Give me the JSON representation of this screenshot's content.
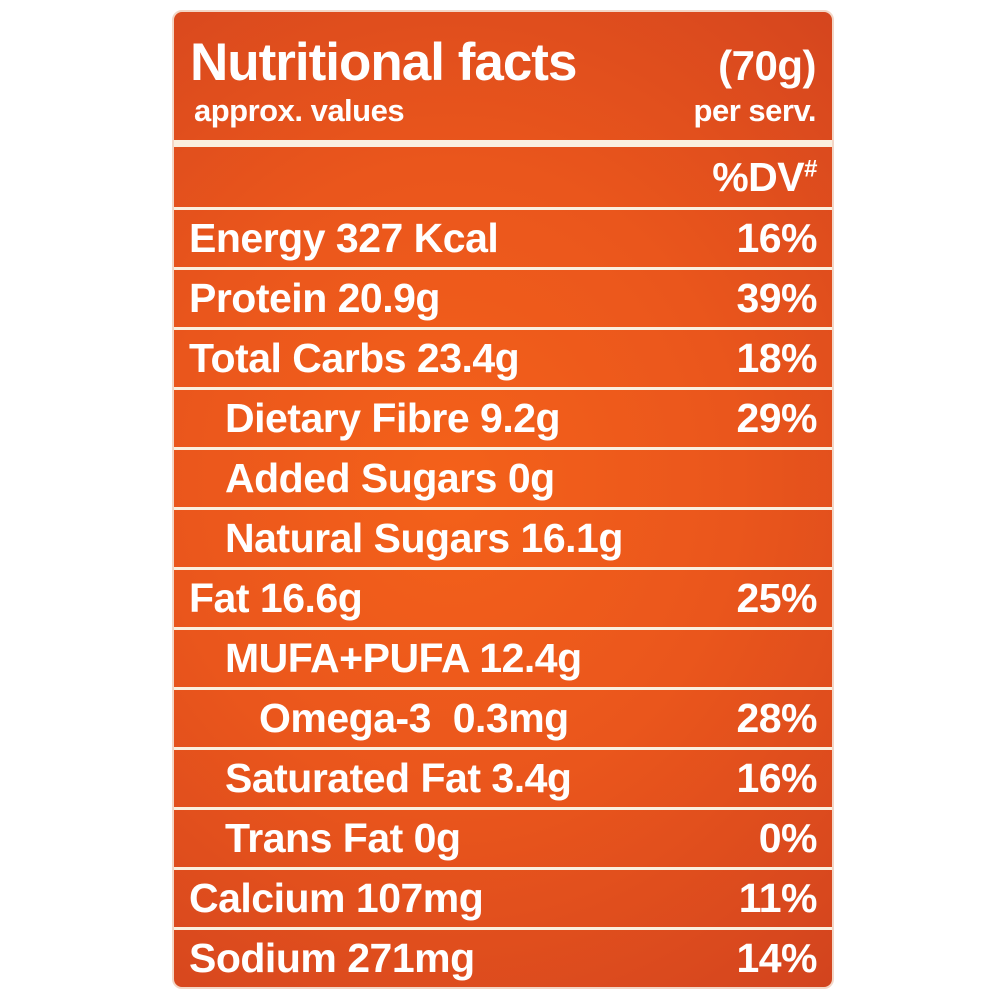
{
  "label": {
    "title": "Nutritional facts",
    "serving_size": "(70g)",
    "approx_note": "approx. values",
    "per_serving_note": "per serv.",
    "dv_header": "%DV",
    "dv_header_mark": "#",
    "rows": [
      {
        "name": "Energy 327 Kcal",
        "dv": "16%",
        "indent": 0
      },
      {
        "name": "Protein 20.9g",
        "dv": "39%",
        "indent": 0
      },
      {
        "name": "Total Carbs 23.4g",
        "dv": "18%",
        "indent": 0
      },
      {
        "name": "Dietary Fibre 9.2g",
        "dv": "29%",
        "indent": 1
      },
      {
        "name": "Added Sugars 0g",
        "dv": "",
        "indent": 1
      },
      {
        "name": "Natural Sugars 16.1g",
        "dv": "",
        "indent": 1
      },
      {
        "name": "Fat 16.6g",
        "dv": "25%",
        "indent": 0
      },
      {
        "name": "MUFA+PUFA 12.4g",
        "dv": "",
        "indent": 1
      },
      {
        "name": "Omega-3  0.3mg",
        "dv": "28%",
        "indent": 2
      },
      {
        "name": "Saturated Fat 3.4g",
        "dv": "16%",
        "indent": 1
      },
      {
        "name": "Trans Fat 0g",
        "dv": "0%",
        "indent": 1
      },
      {
        "name": "Calcium 107mg",
        "dv": "11%",
        "indent": 0
      },
      {
        "name": "Sodium 271mg",
        "dv": "14%",
        "indent": 0
      }
    ],
    "colors": {
      "panel_center": "#f4611a",
      "panel_edge": "#c43a1f",
      "panel_border": "#f3d6c6",
      "divider": "#faefdf",
      "text": "#ffffff"
    }
  }
}
